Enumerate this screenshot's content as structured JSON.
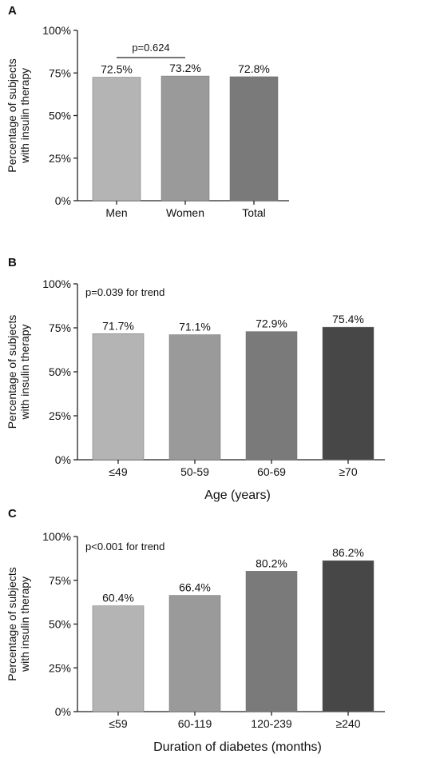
{
  "chart_data": [
    {
      "type": "bar",
      "panel": "A",
      "ylabel": [
        "Percentage of subjects",
        "with insulin therapy"
      ],
      "xlabel": "",
      "ylim": [
        0,
        100
      ],
      "yticks": [
        "0%",
        "25%",
        "50%",
        "75%",
        "100%"
      ],
      "categories": [
        "Men",
        "Women",
        "Total"
      ],
      "values": [
        72.5,
        73.2,
        72.8
      ],
      "value_labels": [
        "72.5%",
        "73.2%",
        "72.8%"
      ],
      "bar_colors": [
        "#b4b4b4",
        "#9a9a9a",
        "#7a7a7a"
      ],
      "annotation": "p=0.624",
      "bracket": [
        0,
        1
      ],
      "legend": "none",
      "grid": false
    },
    {
      "type": "bar",
      "panel": "B",
      "ylabel": [
        "Percentage of subjects",
        "with insulin therapy"
      ],
      "xlabel": "Age (years)",
      "ylim": [
        0,
        100
      ],
      "yticks": [
        "0%",
        "25%",
        "50%",
        "75%",
        "100%"
      ],
      "categories": [
        "≤49",
        "50-59",
        "60-69",
        "≥70"
      ],
      "values": [
        71.7,
        71.1,
        72.9,
        75.4
      ],
      "value_labels": [
        "71.7%",
        "71.1%",
        "72.9%",
        "75.4%"
      ],
      "bar_colors": [
        "#b4b4b4",
        "#9a9a9a",
        "#7a7a7a",
        "#474747"
      ],
      "annotation": "p=0.039 for trend",
      "legend": "none",
      "grid": false
    },
    {
      "type": "bar",
      "panel": "C",
      "ylabel": [
        "Percentage of subjects",
        "with insulin therapy"
      ],
      "xlabel": "Duration of diabetes (months)",
      "ylim": [
        0,
        100
      ],
      "yticks": [
        "0%",
        "25%",
        "50%",
        "75%",
        "100%"
      ],
      "categories": [
        "≤59",
        "60-119",
        "120-239",
        "≥240"
      ],
      "values": [
        60.4,
        66.4,
        80.2,
        86.2
      ],
      "value_labels": [
        "60.4%",
        "66.4%",
        "80.2%",
        "86.2%"
      ],
      "bar_colors": [
        "#b4b4b4",
        "#9a9a9a",
        "#7a7a7a",
        "#474747"
      ],
      "annotation": "p<0.001 for trend",
      "legend": "none",
      "grid": false
    }
  ]
}
